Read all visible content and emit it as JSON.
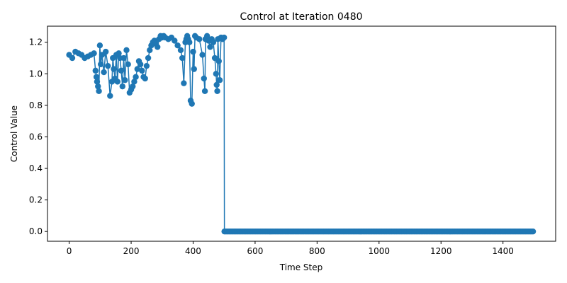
{
  "chart_data": {
    "type": "line",
    "title": "Control at Iteration 0480",
    "xlabel": "Time Step",
    "ylabel": "Control Value",
    "xlim": [
      -70,
      1570
    ],
    "ylim": [
      -0.062,
      1.302
    ],
    "xticks": [
      0,
      200,
      400,
      600,
      800,
      1000,
      1200,
      1400
    ],
    "xtick_labels": [
      "0",
      "200",
      "400",
      "600",
      "800",
      "1000",
      "1200",
      "1400"
    ],
    "yticks": [
      0.0,
      0.2,
      0.4,
      0.6,
      0.8,
      1.0,
      1.2
    ],
    "ytick_labels": [
      "0.0",
      "0.2",
      "0.4",
      "0.6",
      "0.8",
      "1.0",
      "1.2"
    ],
    "grid": false,
    "legend": false,
    "series": [
      {
        "color": "#1f77b4",
        "marker": "circle",
        "x": [
          0,
          10,
          20,
          30,
          40,
          50,
          60,
          70,
          80,
          85,
          88,
          90,
          93,
          96,
          99,
          102,
          106,
          112,
          118,
          125,
          132,
          138,
          141,
          144,
          148,
          152,
          156,
          160,
          164,
          168,
          172,
          176,
          180,
          185,
          190,
          195,
          200,
          205,
          210,
          215,
          220,
          225,
          230,
          235,
          240,
          245,
          250,
          255,
          260,
          265,
          270,
          275,
          280,
          285,
          290,
          295,
          300,
          305,
          310,
          320,
          330,
          340,
          350,
          360,
          365,
          370,
          375,
          378,
          381,
          384,
          388,
          392,
          396,
          400,
          403,
          406,
          410,
          420,
          430,
          435,
          438,
          440,
          445,
          450,
          455,
          460,
          465,
          470,
          474,
          476,
          478,
          480,
          483,
          486,
          490,
          495,
          500
        ],
        "y": [
          1.12,
          1.1,
          1.14,
          1.13,
          1.12,
          1.1,
          1.11,
          1.12,
          1.13,
          1.02,
          0.98,
          0.95,
          0.92,
          0.89,
          1.18,
          1.06,
          1.12,
          1.01,
          1.14,
          1.05,
          0.86,
          0.95,
          1.1,
          1.03,
          0.97,
          1.12,
          0.95,
          1.13,
          1.1,
          1.02,
          0.92,
          1.1,
          0.96,
          1.15,
          1.06,
          0.88,
          0.9,
          0.92,
          0.95,
          0.98,
          1.03,
          1.08,
          1.06,
          1.02,
          0.98,
          0.97,
          1.05,
          1.1,
          1.15,
          1.18,
          1.2,
          1.21,
          1.19,
          1.17,
          1.22,
          1.24,
          1.23,
          1.24,
          1.23,
          1.22,
          1.23,
          1.21,
          1.18,
          1.15,
          1.1,
          0.94,
          1.2,
          1.22,
          1.24,
          1.22,
          1.2,
          0.83,
          0.81,
          1.14,
          1.03,
          1.24,
          1.23,
          1.22,
          1.12,
          0.97,
          0.89,
          1.22,
          1.24,
          1.21,
          1.17,
          1.22,
          1.2,
          1.1,
          1.0,
          0.93,
          0.89,
          1.22,
          1.08,
          0.96,
          1.23,
          1.22,
          1.23
        ],
        "tail": {
          "x_start": 501,
          "x_end": 1500,
          "value": 0.0,
          "point_spacing": 4
        }
      }
    ]
  }
}
